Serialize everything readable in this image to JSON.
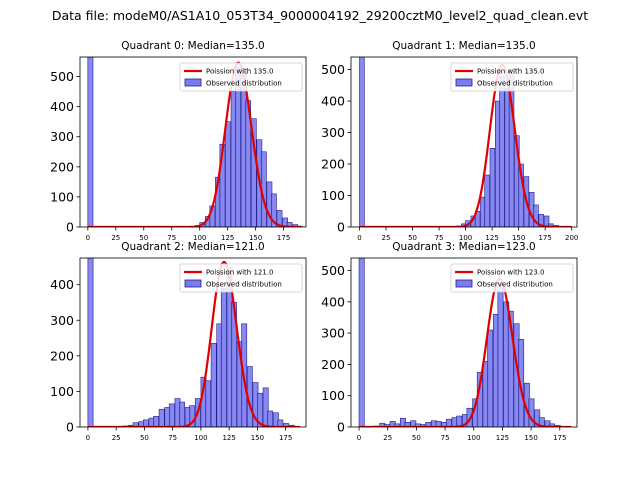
{
  "suptitle": "Data file: modeM0/AS1A10_053T34_9000004192_29200cztM0_level2_quad_clean.evt",
  "colors": {
    "bar_fill": "#7b7bf0",
    "bar_edge": "#1f1f8f",
    "poisson_line": "#e00000"
  },
  "chart_data": [
    {
      "type": "histogram",
      "title": "Quadrant 0: Median=135.0",
      "median": 135.0,
      "xlim": [
        -7,
        195
      ],
      "ylim": [
        0,
        565
      ],
      "xticks": [
        0,
        25,
        50,
        75,
        100,
        125,
        150,
        175
      ],
      "yticks": [
        0,
        100,
        200,
        300,
        400,
        500
      ],
      "legend": {
        "line": "Poission with 135.0",
        "bars": "Observed distribution",
        "loc": "top-right"
      },
      "bin_width": 4.6,
      "bins": [
        [
          0,
          565
        ],
        [
          96,
          5
        ],
        [
          100,
          15
        ],
        [
          105,
          35
        ],
        [
          109,
          70
        ],
        [
          114,
          165
        ],
        [
          118,
          275
        ],
        [
          123,
          350
        ],
        [
          128,
          450
        ],
        [
          132,
          530
        ],
        [
          137,
          525
        ],
        [
          141,
          420
        ],
        [
          146,
          360
        ],
        [
          151,
          290
        ],
        [
          155,
          250
        ],
        [
          160,
          150
        ],
        [
          164,
          110
        ],
        [
          169,
          55
        ],
        [
          174,
          30
        ],
        [
          178,
          15
        ],
        [
          183,
          8
        ],
        [
          187,
          3
        ]
      ]
    },
    {
      "type": "histogram",
      "title": "Quadrant 1: Median=135.0",
      "median": 135.0,
      "xlim": [
        -8,
        205
      ],
      "ylim": [
        0,
        540
      ],
      "xticks": [
        0,
        25,
        50,
        75,
        100,
        125,
        150,
        175,
        200
      ],
      "yticks": [
        0,
        100,
        200,
        300,
        400,
        500
      ],
      "legend": {
        "line": "Poission with 135.0",
        "bars": "Observed distribution",
        "loc": "top-right"
      },
      "bin_width": 4.6,
      "bins": [
        [
          0,
          540
        ],
        [
          91,
          3
        ],
        [
          96,
          10
        ],
        [
          100,
          20
        ],
        [
          105,
          35
        ],
        [
          109,
          50
        ],
        [
          114,
          95
        ],
        [
          118,
          165
        ],
        [
          123,
          250
        ],
        [
          128,
          400
        ],
        [
          132,
          480
        ],
        [
          137,
          440
        ],
        [
          141,
          500
        ],
        [
          146,
          290
        ],
        [
          150,
          200
        ],
        [
          155,
          160
        ],
        [
          160,
          110
        ],
        [
          164,
          70
        ],
        [
          169,
          40
        ],
        [
          174,
          35
        ],
        [
          178,
          10
        ],
        [
          183,
          5
        ],
        [
          187,
          2
        ],
        [
          192,
          1
        ]
      ]
    },
    {
      "type": "histogram",
      "title": "Quadrant 2: Median=121.0",
      "median": 121.0,
      "xlim": [
        -7,
        193
      ],
      "ylim": [
        0,
        475
      ],
      "xticks": [
        0,
        25,
        50,
        75,
        100,
        125,
        150,
        175
      ],
      "yticks": [
        0,
        100,
        200,
        300,
        400
      ],
      "legend": {
        "line": "Poission with 121.0",
        "bars": "Observed distribution",
        "loc": "top-right"
      },
      "bin_width": 4.6,
      "bins": [
        [
          0,
          475
        ],
        [
          31,
          3
        ],
        [
          36,
          5
        ],
        [
          40,
          12
        ],
        [
          45,
          15
        ],
        [
          49,
          20
        ],
        [
          54,
          25
        ],
        [
          58,
          30
        ],
        [
          63,
          50
        ],
        [
          68,
          55
        ],
        [
          72,
          65
        ],
        [
          77,
          80
        ],
        [
          81,
          70
        ],
        [
          86,
          55
        ],
        [
          90,
          60
        ],
        [
          95,
          80
        ],
        [
          100,
          140
        ],
        [
          104,
          130
        ],
        [
          109,
          235
        ],
        [
          114,
          290
        ],
        [
          118,
          390
        ],
        [
          123,
          450
        ],
        [
          127,
          350
        ],
        [
          132,
          240
        ],
        [
          136,
          290
        ],
        [
          141,
          170
        ],
        [
          146,
          125
        ],
        [
          150,
          95
        ],
        [
          155,
          110
        ],
        [
          159,
          45
        ],
        [
          164,
          40
        ],
        [
          168,
          20
        ],
        [
          173,
          10
        ],
        [
          178,
          5
        ],
        [
          182,
          2
        ]
      ]
    },
    {
      "type": "histogram",
      "title": "Quadrant 3: Median=123.0",
      "median": 123.0,
      "xlim": [
        -7,
        190
      ],
      "ylim": [
        0,
        540
      ],
      "xticks": [
        0,
        25,
        50,
        75,
        100,
        125,
        150,
        175
      ],
      "yticks": [
        0,
        100,
        200,
        300,
        400,
        500
      ],
      "legend": {
        "line": "Poission with 123.0",
        "bars": "Observed distribution",
        "loc": "top-right"
      },
      "bin_width": 4.6,
      "bins": [
        [
          0,
          540
        ],
        [
          13,
          3
        ],
        [
          18,
          12
        ],
        [
          22,
          8
        ],
        [
          27,
          18
        ],
        [
          31,
          10
        ],
        [
          36,
          28
        ],
        [
          40,
          15
        ],
        [
          45,
          20
        ],
        [
          49,
          10
        ],
        [
          54,
          8
        ],
        [
          58,
          15
        ],
        [
          63,
          20
        ],
        [
          67,
          18
        ],
        [
          72,
          15
        ],
        [
          76,
          25
        ],
        [
          81,
          30
        ],
        [
          85,
          35
        ],
        [
          90,
          40
        ],
        [
          94,
          60
        ],
        [
          99,
          90
        ],
        [
          103,
          175
        ],
        [
          108,
          210
        ],
        [
          112,
          310
        ],
        [
          117,
          360
        ],
        [
          121,
          460
        ],
        [
          126,
          400
        ],
        [
          130,
          370
        ],
        [
          135,
          330
        ],
        [
          139,
          280
        ],
        [
          144,
          140
        ],
        [
          148,
          90
        ],
        [
          153,
          55
        ],
        [
          157,
          30
        ],
        [
          162,
          20
        ],
        [
          166,
          10
        ],
        [
          171,
          5
        ],
        [
          175,
          2
        ]
      ]
    }
  ]
}
